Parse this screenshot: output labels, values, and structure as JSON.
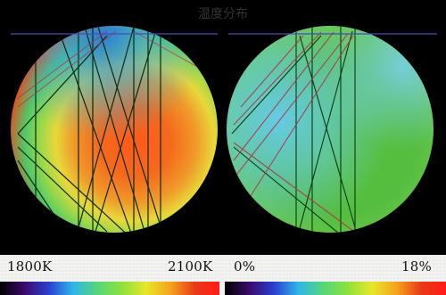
{
  "title": "温度分布",
  "left_panel": {
    "min_label": "1800K",
    "max_label": "2100K"
  },
  "right_panel": {
    "min_label": "0%",
    "max_label": "18%"
  },
  "colorbar_colors": [
    "#000000",
    "#3a0a6a",
    "#2b3fd0",
    "#2fb6e8",
    "#55d67a",
    "#8ee13b",
    "#e8e62a",
    "#f4a21c",
    "#e83a16",
    "#ff1a1a"
  ]
}
